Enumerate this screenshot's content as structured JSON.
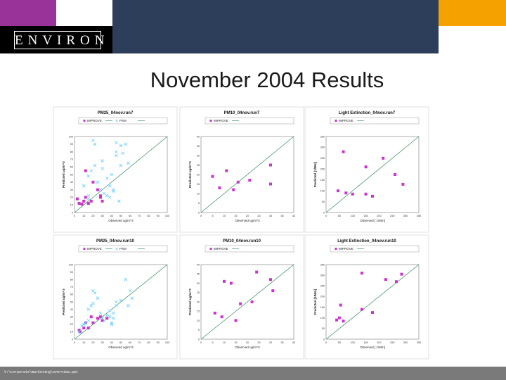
{
  "header": {
    "logo_text": "ENVIRON",
    "colors": {
      "purple": "#993399",
      "navy": "#2d3e5a",
      "orange": "#f5a100",
      "black": "#000000"
    }
  },
  "slide": {
    "title": "November 2004 Results"
  },
  "footer": {
    "path_text": "V:\\corporate\\marketing\\overview.ppt"
  },
  "chart_data": [
    {
      "type": "scatter",
      "title": "PM25_04nov.run7",
      "xlabel": "Observed ug/m^3",
      "ylabel": "Predicted ug/m^3",
      "xlim": [
        0,
        100
      ],
      "ylim": [
        0,
        100
      ],
      "xticks": [
        "0",
        "10",
        "20",
        "30",
        "40",
        "50",
        "60",
        "70",
        "80",
        "90",
        "100"
      ],
      "yticks": [
        "0",
        "10",
        "20",
        "30",
        "40",
        "50",
        "60",
        "70",
        "80",
        "90",
        "100"
      ],
      "legend": [
        "IMPROVE",
        "FRM"
      ],
      "series": [
        {
          "name": "IMPROVE",
          "marker": "square",
          "color": "#cc33cc",
          "points": [
            [
              3,
              18
            ],
            [
              5,
              12
            ],
            [
              8,
              11
            ],
            [
              10,
              15
            ],
            [
              12,
              20
            ],
            [
              12,
              55
            ],
            [
              15,
              12
            ],
            [
              18,
              15
            ],
            [
              20,
              40
            ],
            [
              25,
              30
            ],
            [
              28,
              20
            ],
            [
              28,
              22
            ],
            [
              30,
              15
            ]
          ]
        },
        {
          "name": "FRM",
          "marker": "x",
          "color": "#66ccff",
          "points": [
            [
              10,
              35
            ],
            [
              15,
              22
            ],
            [
              15,
              48
            ],
            [
              18,
              55
            ],
            [
              20,
              95
            ],
            [
              22,
              90
            ],
            [
              22,
              62
            ],
            [
              25,
              40
            ],
            [
              28,
              30
            ],
            [
              30,
              58
            ],
            [
              30,
              68
            ],
            [
              32,
              25
            ],
            [
              35,
              22
            ],
            [
              35,
              45
            ],
            [
              38,
              20
            ],
            [
              38,
              35
            ],
            [
              40,
              50
            ],
            [
              42,
              28
            ],
            [
              42,
              30
            ],
            [
              45,
              92
            ],
            [
              45,
              80
            ],
            [
              45,
              75
            ],
            [
              48,
              15
            ],
            [
              50,
              62
            ],
            [
              50,
              88
            ],
            [
              52,
              78
            ],
            [
              55,
              90
            ],
            [
              58,
              65
            ],
            [
              15,
              18
            ]
          ]
        }
      ]
    },
    {
      "type": "scatter",
      "title": "PM10_04nov.run7",
      "xlabel": "Observed ug/m^3",
      "ylabel": "Predicted ug/m^3",
      "xlim": [
        0,
        40
      ],
      "ylim": [
        0,
        40
      ],
      "xticks": [
        "0",
        "5",
        "10",
        "15",
        "20",
        "25",
        "30",
        "35",
        "40"
      ],
      "yticks": [
        "0",
        "5",
        "10",
        "15",
        "20",
        "25",
        "30",
        "35",
        "40"
      ],
      "legend": [
        "IMPROVE"
      ],
      "series": [
        {
          "name": "IMPROVE",
          "marker": "square",
          "color": "#cc33cc",
          "points": [
            [
              5,
              19
            ],
            [
              8,
              13
            ],
            [
              11,
              22
            ],
            [
              14,
              12
            ],
            [
              16,
              16
            ],
            [
              21,
              17
            ],
            [
              30,
              15
            ],
            [
              30,
              25
            ]
          ]
        }
      ]
    },
    {
      "type": "scatter",
      "title": "Light Extinction_04nov.run7",
      "xlabel": "Observed [ 1/Mm]",
      "ylabel": "Predicted [1/Mm]",
      "xlim": [
        0,
        350
      ],
      "ylim": [
        0,
        350
      ],
      "xticks": [
        "0",
        "50",
        "100",
        "150",
        "200",
        "250",
        "300",
        "350"
      ],
      "yticks": [
        "0",
        "50",
        "100",
        "150",
        "200",
        "250",
        "300",
        "350"
      ],
      "legend": [
        "IMPROVE"
      ],
      "series": [
        {
          "name": "IMPROVE",
          "marker": "square",
          "color": "#cc33cc",
          "points": [
            [
              45,
              100
            ],
            [
              65,
              280
            ],
            [
              75,
              90
            ],
            [
              100,
              85
            ],
            [
              150,
              210
            ],
            [
              150,
              85
            ],
            [
              175,
              75
            ],
            [
              215,
              250
            ],
            [
              260,
              175
            ],
            [
              290,
              130
            ]
          ]
        }
      ]
    },
    {
      "type": "scatter",
      "title": "PM25_04nov.run10",
      "xlabel": "Observed ug/m^3",
      "ylabel": "Predicted ug/m^3",
      "xlim": [
        0,
        100
      ],
      "ylim": [
        0,
        100
      ],
      "xticks": [
        "0",
        "10",
        "20",
        "30",
        "40",
        "50",
        "60",
        "70",
        "80",
        "90",
        "100"
      ],
      "yticks": [
        "0",
        "10",
        "20",
        "30",
        "40",
        "50",
        "60",
        "70",
        "80",
        "90",
        "100"
      ],
      "legend": [
        "IMPROVE",
        "FRM"
      ],
      "series": [
        {
          "name": "IMPROVE",
          "marker": "square",
          "color": "#cc33cc",
          "points": [
            [
              5,
              12
            ],
            [
              6,
              10
            ],
            [
              10,
              15
            ],
            [
              12,
              22
            ],
            [
              15,
              15
            ],
            [
              18,
              30
            ],
            [
              20,
              22
            ],
            [
              25,
              28
            ],
            [
              28,
              30
            ],
            [
              30,
              25
            ],
            [
              35,
              28
            ]
          ]
        },
        {
          "name": "FRM",
          "marker": "x",
          "color": "#66ccff",
          "points": [
            [
              5,
              10
            ],
            [
              8,
              18
            ],
            [
              10,
              20
            ],
            [
              12,
              22
            ],
            [
              15,
              25
            ],
            [
              15,
              40
            ],
            [
              18,
              45
            ],
            [
              20,
              48
            ],
            [
              20,
              65
            ],
            [
              22,
              62
            ],
            [
              25,
              55
            ],
            [
              28,
              35
            ],
            [
              30,
              28
            ],
            [
              32,
              25
            ],
            [
              35,
              32
            ],
            [
              38,
              38
            ],
            [
              40,
              20
            ],
            [
              40,
              22
            ],
            [
              42,
              28
            ],
            [
              45,
              45
            ],
            [
              45,
              50
            ],
            [
              50,
              52
            ],
            [
              55,
              80
            ],
            [
              58,
              45
            ],
            [
              60,
              65
            ],
            [
              62,
              55
            ],
            [
              38,
              30
            ],
            [
              42,
              35
            ]
          ]
        }
      ]
    },
    {
      "type": "scatter",
      "title": "PM10_04nov.run10",
      "xlabel": "Observed ug/m^3",
      "ylabel": "Predicted ug/m^3",
      "xlim": [
        0,
        40
      ],
      "ylim": [
        0,
        40
      ],
      "xticks": [
        "0",
        "5",
        "10",
        "15",
        "20",
        "25",
        "30",
        "35",
        "40"
      ],
      "yticks": [
        "0",
        "5",
        "10",
        "15",
        "20",
        "25",
        "30",
        "35",
        "40"
      ],
      "legend": [
        "IMPROVE"
      ],
      "series": [
        {
          "name": "IMPROVE",
          "marker": "square",
          "color": "#cc33cc",
          "points": [
            [
              6,
              14
            ],
            [
              9,
              12
            ],
            [
              10,
              31
            ],
            [
              13,
              30
            ],
            [
              15,
              10
            ],
            [
              17,
              19
            ],
            [
              22,
              20
            ],
            [
              24,
              36
            ],
            [
              30,
              32
            ],
            [
              31,
              26
            ]
          ]
        }
      ]
    },
    {
      "type": "scatter",
      "title": "Light Extinction_04nov.run10",
      "xlabel": "Observed [ 1/Mm]",
      "ylabel": "Predicted [1/Mm]",
      "xlim": [
        0,
        350
      ],
      "ylim": [
        0,
        350
      ],
      "xticks": [
        "0",
        "50",
        "100",
        "150",
        "200",
        "250",
        "300",
        "350"
      ],
      "yticks": [
        "0",
        "50",
        "100",
        "150",
        "200",
        "250",
        "300",
        "350"
      ],
      "legend": [
        "IMPROVE"
      ],
      "series": [
        {
          "name": "IMPROVE",
          "marker": "square",
          "color": "#cc33cc",
          "points": [
            [
              40,
              90
            ],
            [
              50,
              100
            ],
            [
              55,
              160
            ],
            [
              65,
              85
            ],
            [
              135,
              310
            ],
            [
              135,
              140
            ],
            [
              175,
              125
            ],
            [
              225,
              280
            ],
            [
              265,
              270
            ],
            [
              285,
              305
            ]
          ]
        }
      ]
    }
  ]
}
